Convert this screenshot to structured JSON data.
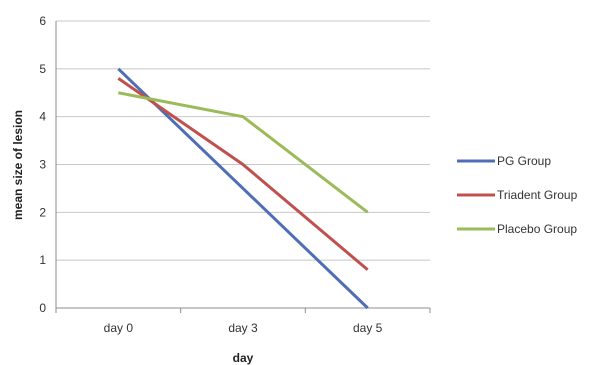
{
  "chart_data": {
    "type": "line",
    "title": "",
    "xlabel": "day",
    "ylabel": "mean size of lesion",
    "categories": [
      "day 0",
      "day 3",
      "day 5"
    ],
    "ylim": [
      0,
      6
    ],
    "yticks": [
      0,
      1,
      2,
      3,
      4,
      5,
      6
    ],
    "grid": true,
    "legend_position": "right",
    "series": [
      {
        "name": "PG Group",
        "color": "#4f6eb5",
        "values": [
          5.0,
          2.5,
          0.0
        ]
      },
      {
        "name": "Triadent Group",
        "color": "#c0504d",
        "values": [
          4.8,
          3.0,
          0.8
        ]
      },
      {
        "name": "Placebo Group",
        "color": "#9bbb59",
        "values": [
          4.5,
          4.0,
          2.0
        ]
      }
    ]
  }
}
